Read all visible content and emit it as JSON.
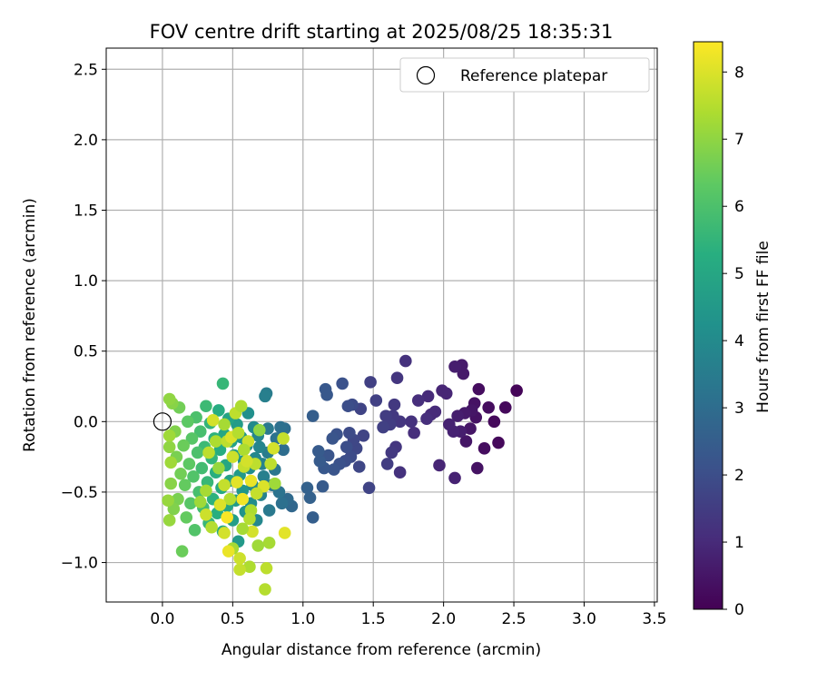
{
  "chart_data": {
    "type": "scatter",
    "title": "FOV centre drift starting at 2025/08/25 18:35:31",
    "xlabel": "Angular distance from reference (arcmin)",
    "ylabel": "Rotation from reference (arcmin)",
    "xlim": [
      -0.4,
      3.52
    ],
    "ylim": [
      -1.28,
      2.65
    ],
    "xticks": [
      0.0,
      0.5,
      1.0,
      1.5,
      2.0,
      2.5,
      3.0,
      3.5
    ],
    "xtick_labels": [
      "0.0",
      "0.5",
      "1.0",
      "1.5",
      "2.0",
      "2.5",
      "3.0",
      "3.5"
    ],
    "yticks": [
      -1.0,
      -0.5,
      0.0,
      0.5,
      1.0,
      1.5,
      2.0,
      2.5
    ],
    "ytick_labels": [
      "−1.0",
      "−0.5",
      "0.0",
      "0.5",
      "1.0",
      "1.5",
      "2.0",
      "2.5"
    ],
    "grid": true,
    "legend": {
      "position": "top-right",
      "entries": [
        "Reference platepar"
      ]
    },
    "reference_point": {
      "x": 0.0,
      "y": 0.0
    },
    "colorbar": {
      "label": "Hours from first FF file",
      "min": 0,
      "max": 8.45,
      "ticks": [
        0,
        1,
        2,
        3,
        4,
        5,
        6,
        7,
        8
      ],
      "tick_labels": [
        "0",
        "1",
        "2",
        "3",
        "4",
        "5",
        "6",
        "7",
        "8"
      ],
      "colormap": "viridis"
    },
    "points": [
      {
        "x": 2.52,
        "y": 0.22,
        "h": 0.1
      },
      {
        "x": 2.44,
        "y": 0.1,
        "h": 0.2
      },
      {
        "x": 2.39,
        "y": -0.15,
        "h": 0.2
      },
      {
        "x": 2.36,
        "y": 0.0,
        "h": 0.2
      },
      {
        "x": 2.32,
        "y": 0.1,
        "h": 0.3
      },
      {
        "x": 2.29,
        "y": -0.19,
        "h": 0.3
      },
      {
        "x": 2.25,
        "y": 0.23,
        "h": 0.3
      },
      {
        "x": 2.24,
        "y": -0.33,
        "h": 0.4
      },
      {
        "x": 2.23,
        "y": 0.03,
        "h": 0.4
      },
      {
        "x": 2.22,
        "y": 0.13,
        "h": 0.4
      },
      {
        "x": 2.2,
        "y": 0.08,
        "h": 0.5
      },
      {
        "x": 2.19,
        "y": -0.05,
        "h": 0.5
      },
      {
        "x": 2.16,
        "y": -0.14,
        "h": 0.5
      },
      {
        "x": 2.15,
        "y": 0.06,
        "h": 0.6
      },
      {
        "x": 2.14,
        "y": 0.34,
        "h": 0.6
      },
      {
        "x": 2.13,
        "y": 0.4,
        "h": 0.6
      },
      {
        "x": 2.12,
        "y": -0.07,
        "h": 0.7
      },
      {
        "x": 2.1,
        "y": 0.04,
        "h": 0.7
      },
      {
        "x": 2.08,
        "y": 0.39,
        "h": 0.7
      },
      {
        "x": 2.08,
        "y": -0.4,
        "h": 0.8
      },
      {
        "x": 2.07,
        "y": -0.07,
        "h": 0.8
      },
      {
        "x": 2.04,
        "y": -0.02,
        "h": 0.8
      },
      {
        "x": 2.02,
        "y": 0.2,
        "h": 0.9
      },
      {
        "x": 1.99,
        "y": 0.22,
        "h": 0.9
      },
      {
        "x": 1.97,
        "y": -0.31,
        "h": 0.9
      },
      {
        "x": 1.94,
        "y": 0.07,
        "h": 1.0
      },
      {
        "x": 1.91,
        "y": 0.05,
        "h": 1.0
      },
      {
        "x": 1.89,
        "y": 0.18,
        "h": 1.0
      },
      {
        "x": 1.88,
        "y": 0.02,
        "h": 1.1
      },
      {
        "x": 1.82,
        "y": 0.15,
        "h": 1.1
      },
      {
        "x": 1.79,
        "y": -0.08,
        "h": 1.1
      },
      {
        "x": 1.77,
        "y": 0.0,
        "h": 1.2
      },
      {
        "x": 1.73,
        "y": 0.43,
        "h": 1.2
      },
      {
        "x": 1.69,
        "y": -0.36,
        "h": 1.2
      },
      {
        "x": 1.69,
        "y": 0.0,
        "h": 1.3
      },
      {
        "x": 1.67,
        "y": 0.31,
        "h": 1.3
      },
      {
        "x": 1.66,
        "y": -0.18,
        "h": 1.3
      },
      {
        "x": 1.65,
        "y": 0.12,
        "h": 1.4
      },
      {
        "x": 1.64,
        "y": 0.04,
        "h": 1.4
      },
      {
        "x": 1.63,
        "y": -0.22,
        "h": 1.4
      },
      {
        "x": 1.62,
        "y": -0.02,
        "h": 1.5
      },
      {
        "x": 1.6,
        "y": -0.3,
        "h": 1.5
      },
      {
        "x": 1.59,
        "y": 0.04,
        "h": 1.5
      },
      {
        "x": 1.57,
        "y": -0.04,
        "h": 1.6
      },
      {
        "x": 1.52,
        "y": 0.15,
        "h": 1.6
      },
      {
        "x": 1.48,
        "y": 0.28,
        "h": 1.6
      },
      {
        "x": 1.47,
        "y": -0.47,
        "h": 1.7
      },
      {
        "x": 1.43,
        "y": -0.1,
        "h": 1.7
      },
      {
        "x": 1.41,
        "y": 0.09,
        "h": 1.7
      },
      {
        "x": 1.4,
        "y": -0.32,
        "h": 1.8
      },
      {
        "x": 1.38,
        "y": -0.19,
        "h": 1.8
      },
      {
        "x": 1.36,
        "y": -0.13,
        "h": 1.8
      },
      {
        "x": 1.35,
        "y": 0.12,
        "h": 1.9
      },
      {
        "x": 1.34,
        "y": -0.25,
        "h": 1.9
      },
      {
        "x": 1.33,
        "y": -0.08,
        "h": 1.9
      },
      {
        "x": 1.32,
        "y": 0.11,
        "h": 2.0
      },
      {
        "x": 1.31,
        "y": -0.18,
        "h": 2.0
      },
      {
        "x": 1.3,
        "y": -0.28,
        "h": 2.0
      },
      {
        "x": 1.28,
        "y": 0.27,
        "h": 2.1
      },
      {
        "x": 1.26,
        "y": -0.3,
        "h": 2.1
      },
      {
        "x": 1.24,
        "y": -0.09,
        "h": 2.1
      },
      {
        "x": 1.22,
        "y": -0.34,
        "h": 2.2
      },
      {
        "x": 1.21,
        "y": -0.12,
        "h": 2.2
      },
      {
        "x": 1.18,
        "y": -0.24,
        "h": 2.2
      },
      {
        "x": 1.17,
        "y": 0.19,
        "h": 2.3
      },
      {
        "x": 1.16,
        "y": 0.23,
        "h": 2.3
      },
      {
        "x": 1.15,
        "y": -0.33,
        "h": 2.3
      },
      {
        "x": 1.14,
        "y": -0.46,
        "h": 2.4
      },
      {
        "x": 1.12,
        "y": -0.28,
        "h": 2.4
      },
      {
        "x": 1.11,
        "y": -0.21,
        "h": 2.4
      },
      {
        "x": 1.07,
        "y": 0.04,
        "h": 2.5
      },
      {
        "x": 1.07,
        "y": -0.68,
        "h": 2.5
      },
      {
        "x": 1.05,
        "y": -0.54,
        "h": 2.6
      },
      {
        "x": 1.03,
        "y": -0.47,
        "h": 2.6
      },
      {
        "x": 0.92,
        "y": -0.6,
        "h": 2.8
      },
      {
        "x": 0.89,
        "y": -0.55,
        "h": 2.9
      },
      {
        "x": 0.87,
        "y": -0.05,
        "h": 3.0
      },
      {
        "x": 0.86,
        "y": -0.2,
        "h": 3.0
      },
      {
        "x": 0.85,
        "y": -0.58,
        "h": 3.1
      },
      {
        "x": 0.84,
        "y": -0.04,
        "h": 3.1
      },
      {
        "x": 0.83,
        "y": -0.5,
        "h": 3.2
      },
      {
        "x": 0.81,
        "y": -0.12,
        "h": 3.2
      },
      {
        "x": 0.8,
        "y": -0.34,
        "h": 3.3
      },
      {
        "x": 0.78,
        "y": -0.45,
        "h": 3.3
      },
      {
        "x": 0.76,
        "y": -0.63,
        "h": 3.4
      },
      {
        "x": 0.75,
        "y": -0.05,
        "h": 3.4
      },
      {
        "x": 0.75,
        "y": -0.22,
        "h": 3.5
      },
      {
        "x": 0.74,
        "y": 0.2,
        "h": 3.5
      },
      {
        "x": 0.73,
        "y": 0.18,
        "h": 3.6
      },
      {
        "x": 0.72,
        "y": -0.39,
        "h": 3.6
      },
      {
        "x": 0.71,
        "y": -0.3,
        "h": 3.7
      },
      {
        "x": 0.7,
        "y": -0.52,
        "h": 3.7
      },
      {
        "x": 0.69,
        "y": -0.18,
        "h": 3.8
      },
      {
        "x": 0.68,
        "y": -0.1,
        "h": 3.8
      },
      {
        "x": 0.67,
        "y": -0.7,
        "h": 3.9
      },
      {
        "x": 0.66,
        "y": -0.26,
        "h": 3.9
      },
      {
        "x": 0.65,
        "y": -0.04,
        "h": 4.0
      },
      {
        "x": 0.64,
        "y": -0.45,
        "h": 4.0
      },
      {
        "x": 0.63,
        "y": -0.58,
        "h": 4.1
      },
      {
        "x": 0.62,
        "y": -0.33,
        "h": 4.1
      },
      {
        "x": 0.61,
        "y": 0.06,
        "h": 4.2
      },
      {
        "x": 0.6,
        "y": -0.17,
        "h": 4.2
      },
      {
        "x": 0.59,
        "y": -0.64,
        "h": 4.3
      },
      {
        "x": 0.58,
        "y": -0.28,
        "h": 4.3
      },
      {
        "x": 0.57,
        "y": -0.49,
        "h": 4.4
      },
      {
        "x": 0.56,
        "y": -0.11,
        "h": 4.4
      },
      {
        "x": 0.55,
        "y": -0.38,
        "h": 4.5
      },
      {
        "x": 0.54,
        "y": -0.85,
        "h": 4.5
      },
      {
        "x": 0.53,
        "y": -0.02,
        "h": 4.6
      },
      {
        "x": 0.52,
        "y": -0.56,
        "h": 4.6
      },
      {
        "x": 0.51,
        "y": -0.24,
        "h": 4.7
      },
      {
        "x": 0.5,
        "y": -0.7,
        "h": 4.7
      },
      {
        "x": 0.49,
        "y": -0.14,
        "h": 4.8
      },
      {
        "x": 0.48,
        "y": -0.42,
        "h": 4.8
      },
      {
        "x": 0.47,
        "y": 0.02,
        "h": 4.9
      },
      {
        "x": 0.46,
        "y": -0.6,
        "h": 4.9
      },
      {
        "x": 0.45,
        "y": -0.31,
        "h": 5.0
      },
      {
        "x": 0.44,
        "y": -0.09,
        "h": 5.0
      },
      {
        "x": 0.43,
        "y": -0.78,
        "h": 5.1
      },
      {
        "x": 0.42,
        "y": -0.47,
        "h": 5.1
      },
      {
        "x": 0.41,
        "y": -0.2,
        "h": 5.2
      },
      {
        "x": 0.4,
        "y": 0.08,
        "h": 5.2
      },
      {
        "x": 0.39,
        "y": -0.65,
        "h": 5.3
      },
      {
        "x": 0.38,
        "y": -0.36,
        "h": 5.3
      },
      {
        "x": 0.37,
        "y": -0.12,
        "h": 5.4
      },
      {
        "x": 0.36,
        "y": -0.55,
        "h": 5.4
      },
      {
        "x": 0.35,
        "y": -0.26,
        "h": 5.5
      },
      {
        "x": 0.34,
        "y": -0.01,
        "h": 5.5
      },
      {
        "x": 0.33,
        "y": -0.72,
        "h": 5.6
      },
      {
        "x": 0.32,
        "y": -0.43,
        "h": 5.6
      },
      {
        "x": 0.31,
        "y": 0.11,
        "h": 5.7
      },
      {
        "x": 0.3,
        "y": -0.18,
        "h": 5.7
      },
      {
        "x": 0.29,
        "y": -0.61,
        "h": 5.8
      },
      {
        "x": 0.28,
        "y": -0.33,
        "h": 5.8
      },
      {
        "x": 0.27,
        "y": -0.07,
        "h": 5.9
      },
      {
        "x": 0.26,
        "y": -0.5,
        "h": 5.9
      },
      {
        "x": 0.25,
        "y": -0.22,
        "h": 6.0
      },
      {
        "x": 0.24,
        "y": 0.03,
        "h": 6.0
      },
      {
        "x": 0.23,
        "y": -0.77,
        "h": 6.1
      },
      {
        "x": 0.22,
        "y": -0.39,
        "h": 6.1
      },
      {
        "x": 0.21,
        "y": -0.12,
        "h": 6.2
      },
      {
        "x": 0.2,
        "y": -0.58,
        "h": 6.2
      },
      {
        "x": 0.19,
        "y": -0.3,
        "h": 6.3
      },
      {
        "x": 0.18,
        "y": 0.0,
        "h": 6.3
      },
      {
        "x": 0.17,
        "y": -0.68,
        "h": 6.4
      },
      {
        "x": 0.16,
        "y": -0.45,
        "h": 6.4
      },
      {
        "x": 0.15,
        "y": -0.17,
        "h": 6.5
      },
      {
        "x": 0.14,
        "y": -0.92,
        "h": 6.5
      },
      {
        "x": 0.13,
        "y": -0.37,
        "h": 6.6
      },
      {
        "x": 0.12,
        "y": 0.1,
        "h": 6.6
      },
      {
        "x": 0.11,
        "y": -0.55,
        "h": 6.7
      },
      {
        "x": 0.1,
        "y": -0.25,
        "h": 6.7
      },
      {
        "x": 0.09,
        "y": -0.07,
        "h": 6.8
      },
      {
        "x": 0.08,
        "y": -0.62,
        "h": 6.8
      },
      {
        "x": 0.07,
        "y": 0.13,
        "h": 6.9
      },
      {
        "x": 0.06,
        "y": -0.44,
        "h": 6.9
      },
      {
        "x": 0.05,
        "y": -0.18,
        "h": 7.0
      },
      {
        "x": 0.05,
        "y": 0.16,
        "h": 7.0
      },
      {
        "x": 0.04,
        "y": -0.56,
        "h": 7.1
      },
      {
        "x": 0.05,
        "y": -0.7,
        "h": 7.1
      },
      {
        "x": 0.06,
        "y": -0.29,
        "h": 7.2
      },
      {
        "x": 0.05,
        "y": -0.1,
        "h": 7.2
      },
      {
        "x": 0.43,
        "y": 0.27,
        "h": 5.6
      },
      {
        "x": 0.52,
        "y": 0.06,
        "h": 7.6
      },
      {
        "x": 0.56,
        "y": 0.11,
        "h": 7.4
      },
      {
        "x": 0.61,
        "y": -0.14,
        "h": 7.8
      },
      {
        "x": 0.66,
        "y": -0.3,
        "h": 7.6
      },
      {
        "x": 0.69,
        "y": -0.06,
        "h": 7.0
      },
      {
        "x": 0.72,
        "y": -0.46,
        "h": 8.0
      },
      {
        "x": 0.76,
        "y": -0.86,
        "h": 7.3
      },
      {
        "x": 0.77,
        "y": -0.3,
        "h": 7.6
      },
      {
        "x": 0.79,
        "y": -0.19,
        "h": 7.9
      },
      {
        "x": 0.8,
        "y": -0.44,
        "h": 7.2
      },
      {
        "x": 0.86,
        "y": -0.12,
        "h": 7.7
      },
      {
        "x": 0.87,
        "y": -0.79,
        "h": 8.1
      },
      {
        "x": 0.73,
        "y": -1.19,
        "h": 7.5
      },
      {
        "x": 0.74,
        "y": -1.04,
        "h": 7.6
      },
      {
        "x": 0.62,
        "y": -1.03,
        "h": 7.4
      },
      {
        "x": 0.55,
        "y": -1.05,
        "h": 7.7
      },
      {
        "x": 0.55,
        "y": -0.97,
        "h": 7.8
      },
      {
        "x": 0.5,
        "y": -0.9,
        "h": 7.3
      },
      {
        "x": 0.47,
        "y": -0.92,
        "h": 8.2
      },
      {
        "x": 0.44,
        "y": -0.79,
        "h": 7.9
      },
      {
        "x": 0.46,
        "y": -0.68,
        "h": 8.4
      },
      {
        "x": 0.48,
        "y": -0.55,
        "h": 7.5
      },
      {
        "x": 0.44,
        "y": -0.45,
        "h": 7.7
      },
      {
        "x": 0.41,
        "y": -0.59,
        "h": 8.0
      },
      {
        "x": 0.4,
        "y": -0.33,
        "h": 7.1
      },
      {
        "x": 0.38,
        "y": -0.14,
        "h": 7.4
      },
      {
        "x": 0.36,
        "y": 0.01,
        "h": 7.9
      },
      {
        "x": 0.33,
        "y": -0.22,
        "h": 7.6
      },
      {
        "x": 0.31,
        "y": -0.49,
        "h": 7.3
      },
      {
        "x": 0.31,
        "y": -0.66,
        "h": 7.8
      },
      {
        "x": 0.35,
        "y": -0.75,
        "h": 7.5
      },
      {
        "x": 0.27,
        "y": -0.57,
        "h": 7.2
      },
      {
        "x": 0.5,
        "y": -0.25,
        "h": 7.8
      },
      {
        "x": 0.53,
        "y": -0.43,
        "h": 8.1
      },
      {
        "x": 0.57,
        "y": -0.55,
        "h": 8.3
      },
      {
        "x": 0.58,
        "y": -0.32,
        "h": 7.7
      },
      {
        "x": 0.63,
        "y": -0.63,
        "h": 7.4
      },
      {
        "x": 0.64,
        "y": -0.78,
        "h": 7.9
      },
      {
        "x": 0.68,
        "y": -0.88,
        "h": 7.2
      },
      {
        "x": 0.46,
        "y": -0.14,
        "h": 7.6
      },
      {
        "x": 0.44,
        "y": -0.02,
        "h": 7.3
      },
      {
        "x": 0.49,
        "y": -0.11,
        "h": 8.0
      },
      {
        "x": 0.54,
        "y": -0.08,
        "h": 7.5
      },
      {
        "x": 0.58,
        "y": -0.2,
        "h": 7.4
      },
      {
        "x": 0.6,
        "y": -0.28,
        "h": 7.9
      },
      {
        "x": 0.63,
        "y": -0.42,
        "h": 8.2
      },
      {
        "x": 0.67,
        "y": -0.51,
        "h": 7.7
      },
      {
        "x": 0.62,
        "y": -0.69,
        "h": 7.5
      },
      {
        "x": 0.57,
        "y": -0.76,
        "h": 7.3
      }
    ]
  }
}
